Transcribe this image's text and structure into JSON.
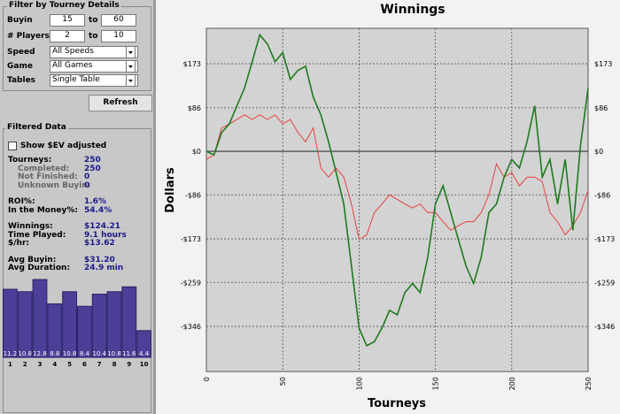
{
  "filter": {
    "title": "Filter by Tourney Details",
    "buyin": {
      "label": "Buyin",
      "from": "15",
      "to_label": "to",
      "to": "60"
    },
    "players": {
      "label": "# Players",
      "from": "2",
      "to_label": "to",
      "to": "10"
    },
    "speed": {
      "label": "Speed",
      "value": "All Speeds"
    },
    "game": {
      "label": "Game",
      "value": "All Games"
    },
    "tables": {
      "label": "Tables",
      "value": "Single Table"
    },
    "refresh": "Refresh"
  },
  "filtered_data": {
    "title": "Filtered Data",
    "checkbox": "Show $EV adjusted",
    "groups": [
      [
        {
          "label": "Tourneys:",
          "value": "250"
        },
        {
          "label": "Completed:",
          "value": "250",
          "sub": true
        },
        {
          "label": "Not Finished:",
          "value": "0",
          "sub": true
        },
        {
          "label": "Unknown Buyin:",
          "value": "0",
          "sub": true
        }
      ],
      [
        {
          "label": "ROI%:",
          "value": "1.6%"
        },
        {
          "label": "In the Money%:",
          "value": "54.4%"
        }
      ],
      [
        {
          "label": "Winnings:",
          "value": "$124.21"
        },
        {
          "label": "Time Played:",
          "value": "9.1 hours"
        },
        {
          "label": "$/hr:",
          "value": "$13.62"
        }
      ],
      [
        {
          "label": "Avg Buyin:",
          "value": "$31.20"
        },
        {
          "label": "Avg Duration:",
          "value": "24.9 min"
        }
      ]
    ],
    "finish_chart": {
      "type": "bar",
      "categories": [
        "1",
        "2",
        "3",
        "4",
        "5",
        "6",
        "7",
        "8",
        "9",
        "10"
      ],
      "values": [
        11.2,
        10.8,
        12.8,
        8.8,
        10.8,
        8.4,
        10.4,
        10.8,
        11.6,
        4.4
      ],
      "color": "#4b3f98"
    }
  },
  "chart_data": {
    "type": "line",
    "title": "Winnings",
    "x_label": "Tourneys",
    "y_label": "Dollars",
    "x": [
      0,
      5,
      10,
      15,
      20,
      25,
      30,
      35,
      40,
      45,
      50,
      55,
      60,
      65,
      70,
      75,
      80,
      85,
      90,
      95,
      100,
      105,
      110,
      115,
      120,
      125,
      130,
      135,
      140,
      145,
      150,
      155,
      160,
      165,
      170,
      175,
      180,
      185,
      190,
      195,
      200,
      205,
      210,
      215,
      220,
      225,
      230,
      235,
      240,
      245,
      250
    ],
    "series": [
      {
        "color": "#1e7a1e",
        "values": [
          0,
          -7,
          37,
          54,
          90,
          125,
          177,
          230,
          212,
          177,
          195,
          142,
          160,
          168,
          107,
          72,
          19,
          -42,
          -104,
          -226,
          -349,
          -384,
          -376,
          -349,
          -314,
          -323,
          -279,
          -261,
          -279,
          -209,
          -104,
          -68,
          -121,
          -174,
          -226,
          -261,
          -209,
          -121,
          -104,
          -51,
          -16,
          -33,
          19,
          90,
          -51,
          -16,
          -104,
          -16,
          -156,
          11,
          125
        ]
      },
      {
        "color": "#e84040",
        "values": [
          -16,
          -7,
          46,
          54,
          63,
          72,
          63,
          72,
          63,
          72,
          54,
          63,
          37,
          19,
          46,
          -33,
          -51,
          -33,
          -51,
          -104,
          -174,
          -165,
          -121,
          -104,
          -86,
          -95,
          -104,
          -112,
          -104,
          -121,
          -121,
          -139,
          -156,
          -147,
          -139,
          -139,
          -121,
          -86,
          -25,
          -51,
          -42,
          -68,
          -51,
          -51,
          -60,
          -121,
          -139,
          -165,
          -147,
          -121,
          -77
        ]
      }
    ],
    "xlim": [
      0,
      250
    ],
    "xticks": [
      0,
      50,
      100,
      150,
      200,
      250
    ],
    "ylim": [
      -435,
      243
    ],
    "yticks": [
      {
        "value": 173,
        "label": "$173"
      },
      {
        "value": 86,
        "label": "$86"
      },
      {
        "value": 0,
        "label": "$0"
      },
      {
        "value": -86,
        "label": "-$86"
      },
      {
        "value": -173,
        "label": "-$173"
      },
      {
        "value": -259,
        "label": "-$259"
      },
      {
        "value": -346,
        "label": "-$346"
      }
    ],
    "grid": true
  }
}
